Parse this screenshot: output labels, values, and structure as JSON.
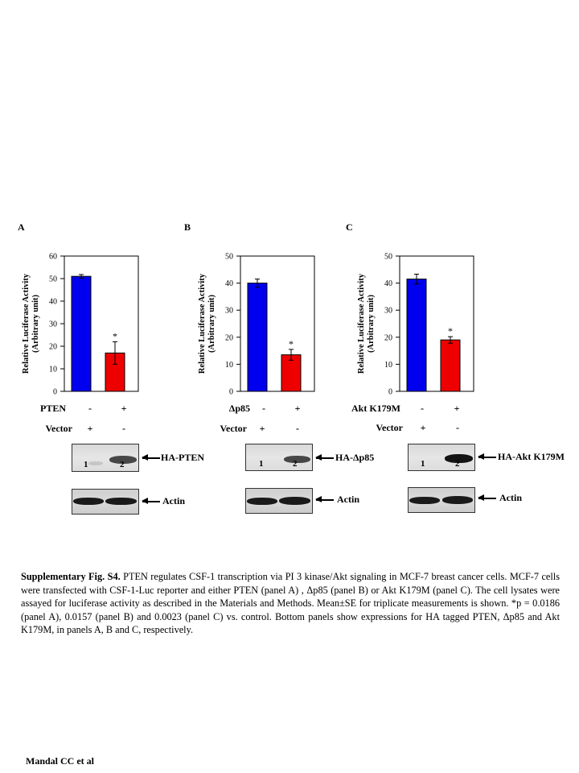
{
  "panels": [
    {
      "letter": "A",
      "ylabel_line1": "Relative Luciferase Activity",
      "ylabel_line2": "(Arbitrary unit)",
      "y_ticks": [
        "0",
        "10",
        "20",
        "30",
        "40",
        "50",
        "60"
      ],
      "ymax": 60,
      "bar_labels": [
        "",
        "*"
      ],
      "row1_label": "PTEN",
      "row1_signs": [
        "-",
        "+"
      ],
      "row2_label": "Vector",
      "row2_signs": [
        "+",
        "-"
      ],
      "blot_top_label": "HA-PTEN",
      "blot_bottom_label": "Actin",
      "lanes": [
        "1",
        "2"
      ]
    },
    {
      "letter": "B",
      "ylabel_line1": "Relative Luciferase Activity",
      "ylabel_line2": "(Arbitrary unit)",
      "y_ticks": [
        "0",
        "10",
        "20",
        "30",
        "40",
        "50"
      ],
      "ymax": 50,
      "bar_labels": [
        "",
        "*"
      ],
      "row1_label": "Δp85",
      "row1_signs": [
        "-",
        "+"
      ],
      "row2_label": "Vector",
      "row2_signs": [
        "+",
        "-"
      ],
      "blot_top_label": "HA-Δp85",
      "blot_bottom_label": "Actin",
      "lanes": [
        "1",
        "2"
      ]
    },
    {
      "letter": "C",
      "ylabel_line1": "Relative Luciferase Activity",
      "ylabel_line2": "(Arbitrary unit)",
      "y_ticks": [
        "0",
        "10",
        "20",
        "30",
        "40",
        "50"
      ],
      "ymax": 50,
      "bar_labels": [
        "",
        "*"
      ],
      "row1_label": "Akt K179M",
      "row1_signs": [
        "-",
        "+"
      ],
      "row2_label": "Vector",
      "row2_signs": [
        "+",
        "-"
      ],
      "blot_top_label": "HA-Akt K179M",
      "blot_bottom_label": "Actin",
      "lanes": [
        "1",
        "2"
      ]
    }
  ],
  "chart_data": [
    {
      "type": "bar",
      "title": "",
      "ylabel": "Relative Luciferase Activity (Arbitrary unit)",
      "ylim": [
        0,
        60
      ],
      "categories": [
        "1",
        "2"
      ],
      "values": [
        51,
        17
      ],
      "errors": [
        0.8,
        5
      ],
      "colors": [
        "#0000ee",
        "#ee0000"
      ]
    },
    {
      "type": "bar",
      "title": "",
      "ylabel": "Relative Luciferase Activity (Arbitrary unit)",
      "ylim": [
        0,
        50
      ],
      "categories": [
        "1",
        "2"
      ],
      "values": [
        40,
        13.5
      ],
      "errors": [
        1.5,
        2
      ],
      "colors": [
        "#0000ee",
        "#ee0000"
      ]
    },
    {
      "type": "bar",
      "title": "",
      "ylabel": "Relative Luciferase Activity (Arbitrary unit)",
      "ylim": [
        0,
        50
      ],
      "categories": [
        "1",
        "2"
      ],
      "values": [
        41.5,
        19
      ],
      "errors": [
        1.8,
        1.2
      ],
      "colors": [
        "#0000ee",
        "#ee0000"
      ]
    }
  ],
  "caption": {
    "bold": "Supplementary Fig. S4.",
    "text": " PTEN regulates CSF-1 transcription via PI 3 kinase/Akt signaling in MCF-7 breast cancer cells. MCF-7 cells were transfected with CSF-1-Luc reporter and either PTEN (panel A) , Δp85 (panel B) or Akt K179M (panel C). The cell lysates were assayed for luciferase activity as described in the Materials and Methods. Mean±SE for triplicate measurements is shown. *p = 0.0186 (panel A), 0.0157 (panel B) and 0.0023 (panel C) vs. control. Bottom panels show expressions for HA tagged PTEN, Δp85 and Akt K179M, in panels A, B and C, respectively."
  },
  "footer": "Mandal CC et al"
}
